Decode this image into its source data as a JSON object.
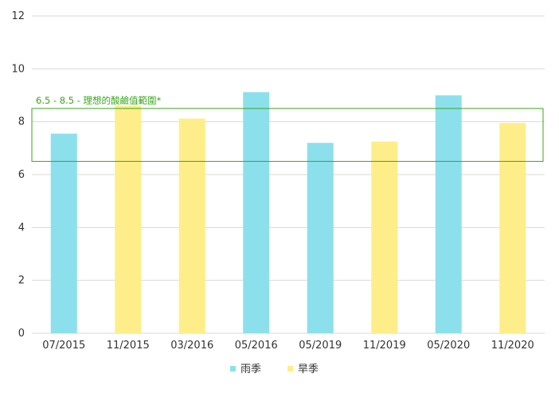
{
  "chart_data": {
    "type": "bar",
    "categories": [
      "07/2015",
      "11/2015",
      "03/2016",
      "05/2016",
      "05/2019",
      "11/2019",
      "05/2020",
      "11/2020"
    ],
    "values": [
      7.55,
      8.6,
      8.12,
      9.12,
      7.2,
      7.25,
      9.0,
      7.95
    ],
    "bar_series": [
      "雨季",
      "旱季",
      "旱季",
      "雨季",
      "雨季",
      "旱季",
      "雨季",
      "旱季"
    ],
    "legend": [
      {
        "name": "雨季",
        "color": "#8ce0ec"
      },
      {
        "name": "旱季",
        "color": "#fdee89"
      }
    ],
    "ylim": [
      0,
      12
    ],
    "yticks": [
      0,
      2,
      4,
      6,
      8,
      10,
      12
    ],
    "grid": true,
    "legend_position": "bottom-center",
    "band": {
      "from": 6.5,
      "to": 8.5,
      "label": "6.5 - 8.5 - 理想的酸鹼值範圍*",
      "color": "#3aa51e"
    }
  }
}
